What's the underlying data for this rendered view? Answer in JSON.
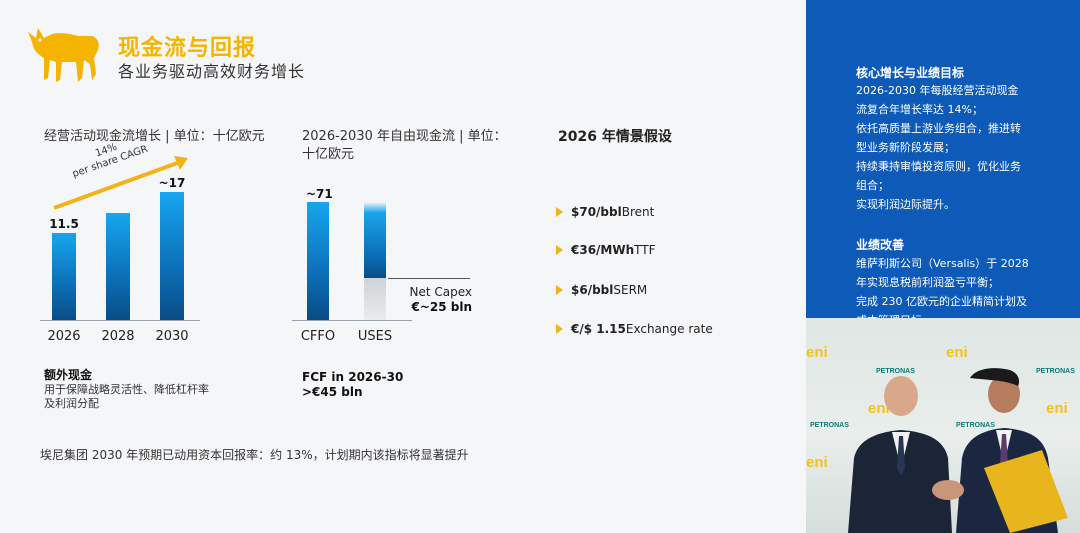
{
  "header": {
    "title": "现金流与回报",
    "subtitle": "各业务驱动高效财务增长"
  },
  "cfo_chart": {
    "title": "经营活动现金流增长 | 单位：十亿欧元",
    "cagr_label": "14% per share CAGR",
    "cagr_line1": "14%",
    "cagr_line2": "per share CAGR",
    "value_labels": [
      "11.5",
      "",
      "~17"
    ],
    "note_title": "额外现金",
    "note_line1": "用于保障战略灵活性、降低杠杆率",
    "note_line2": "及利润分配"
  },
  "chart_data": [
    {
      "type": "bar",
      "title": "经营活动现金流增长 | 单位：十亿欧元",
      "categories": [
        "2026",
        "2028",
        "2030"
      ],
      "values": [
        11.5,
        14.2,
        17
      ],
      "ylim": [
        0,
        17
      ]
    },
    {
      "type": "bar",
      "title": "2026-2030 年自由现金流 | 单位：十亿欧元",
      "categories": [
        "CFFO",
        "USES"
      ],
      "values": [
        71,
        71
      ],
      "segments": [
        {
          "category": "USES",
          "name": "Net Capex",
          "value": 25,
          "label": "€~25 bln"
        }
      ],
      "ylim": [
        0,
        71
      ]
    }
  ],
  "fcf_chart": {
    "title_line1": "2026-2030 年自由现金流 | 单位：",
    "title_line2": "十亿欧元",
    "cffo_value_label": "~71",
    "net_capex_label": "Net Capex",
    "net_capex_value": "€~25 bln",
    "note_line1": "FCF in 2026-30",
    "note_line2": ">€45 bln"
  },
  "assumptions": {
    "title": "2026 年情景假设",
    "items": [
      {
        "bold": "$70/bbl",
        "text": " Brent"
      },
      {
        "bold": "€36/MWh",
        "text": " TTF"
      },
      {
        "bold": "$6/bbl",
        "text": " SERM"
      },
      {
        "bold": "€/$ 1.15",
        "text": " Exchange rate"
      }
    ]
  },
  "footer": "埃尼集团 2030 年预期已动用资本回报率：约 13%，计划期内该指标将显著提升",
  "sidebar": {
    "block1_title": "核心增长与业绩目标",
    "block1_lines": [
      "2026-2030 年每股经营活动现金",
      "流复合年增长率达 14%；",
      "依托高质量上游业务组合，推进转",
      "型业务新阶段发展；",
      "持续秉持审慎投资原则，优化业务",
      "组合；",
      "实现利润边际提升。"
    ],
    "block2_title": "业绩改善",
    "block2_lines": [
      "维萨利斯公司（Versalis）于 2028",
      "年实现息税前利润盈亏平衡；",
      "完成 230 亿欧元的企业精简计划及",
      "成本管理目标。"
    ],
    "photo_brand": "eni",
    "photo_brand2": "PETRONAS"
  },
  "colors": {
    "accent": "#f4b400",
    "bar_blue": "#0c6fb7",
    "sidebar_bg": "#0d5ab8"
  }
}
